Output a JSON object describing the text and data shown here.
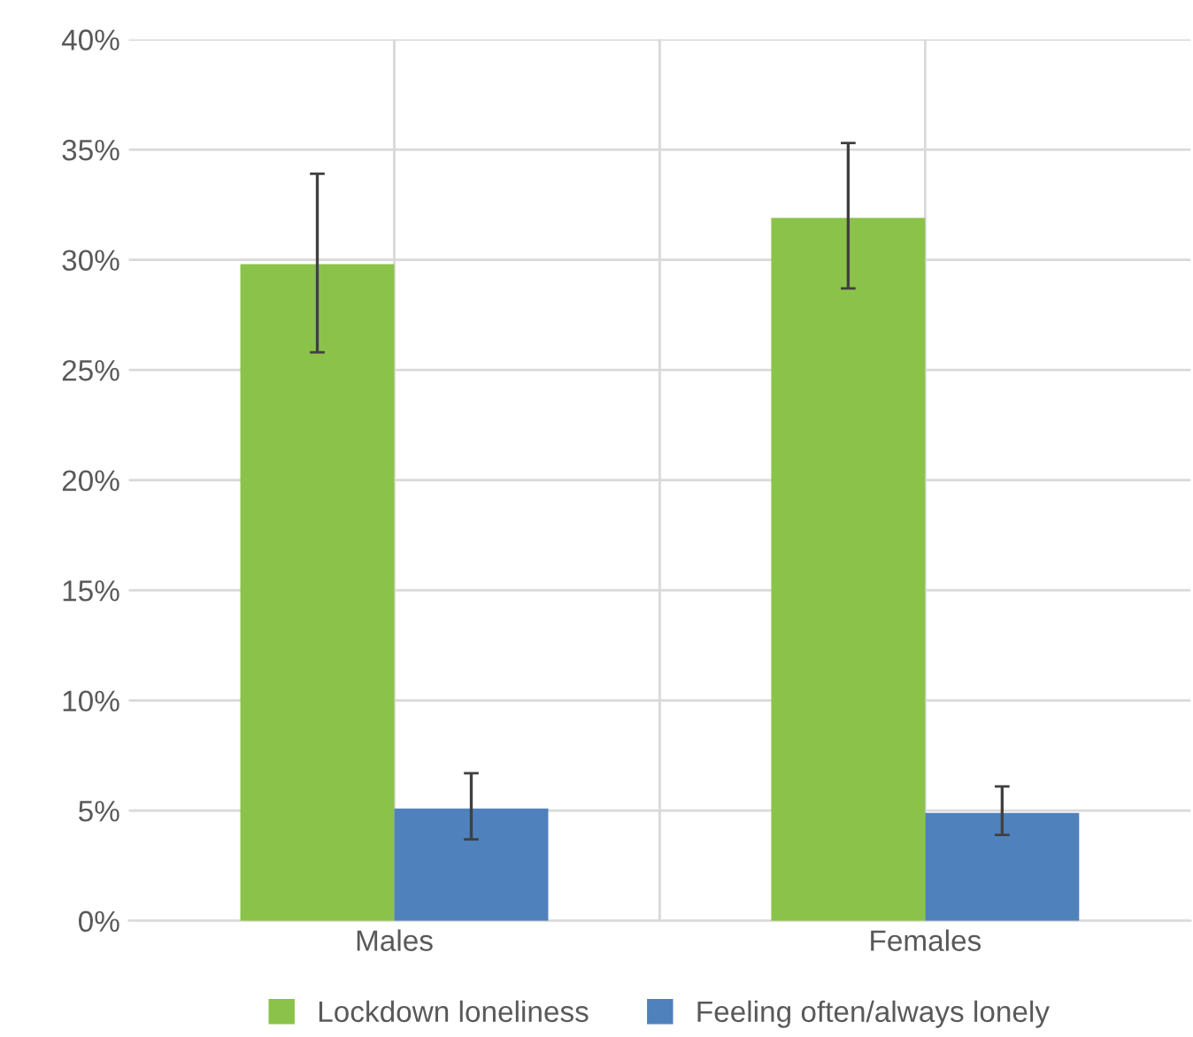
{
  "chart_data": {
    "type": "bar",
    "categories": [
      "Males",
      "Females"
    ],
    "series": [
      {
        "name": "Lockdown loneliness",
        "color": "#8bc34a",
        "values": [
          29.8,
          31.9
        ],
        "errors": [
          [
            25.8,
            33.9
          ],
          [
            28.7,
            35.3
          ]
        ]
      },
      {
        "name": "Feeling often/always lonely",
        "color": "#4f81bd",
        "values": [
          5.1,
          4.9
        ],
        "errors": [
          [
            3.7,
            6.7
          ],
          [
            3.9,
            6.1
          ]
        ]
      }
    ],
    "ylim": [
      0,
      40
    ],
    "yticks": [
      {
        "value": 0,
        "label": "0%"
      },
      {
        "value": 5,
        "label": "5%"
      },
      {
        "value": 10,
        "label": "10%"
      },
      {
        "value": 15,
        "label": "15%"
      },
      {
        "value": 20,
        "label": "20%"
      },
      {
        "value": 25,
        "label": "25%"
      },
      {
        "value": 30,
        "label": "30%"
      },
      {
        "value": 35,
        "label": "35%"
      },
      {
        "value": 40,
        "label": "40%"
      }
    ],
    "grid": true,
    "legend": "bottom"
  }
}
